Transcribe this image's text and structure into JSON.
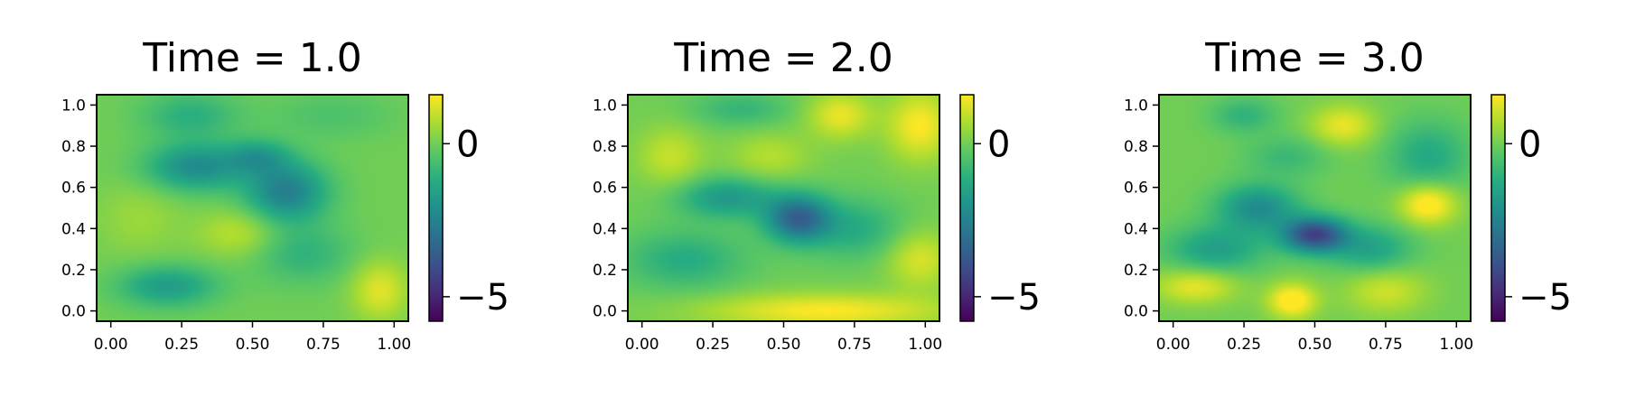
{
  "chart_data": [
    {
      "type": "heatmap",
      "title": "Time = 1.0",
      "x_ticks": [
        "0.00",
        "0.25",
        "0.50",
        "0.75",
        "1.00"
      ],
      "y_ticks": [
        "0.0",
        "0.2",
        "0.4",
        "0.6",
        "0.8",
        "1.0"
      ],
      "xlim": [
        -0.05,
        1.05
      ],
      "ylim": [
        -0.05,
        1.05
      ],
      "colorbar": {
        "ticks": [
          "0",
          "−5"
        ],
        "values": [
          0,
          -5
        ],
        "range": [
          -5.8,
          1.6
        ],
        "colormap": "viridis"
      },
      "features": [
        {
          "x": 0.3,
          "y": 0.7,
          "sx": 0.12,
          "sy": 0.08,
          "amp": -2.2
        },
        {
          "x": 0.62,
          "y": 0.58,
          "sx": 0.1,
          "sy": 0.1,
          "amp": -2.6
        },
        {
          "x": 0.52,
          "y": 0.75,
          "sx": 0.08,
          "sy": 0.06,
          "amp": -1.5
        },
        {
          "x": 0.2,
          "y": 0.12,
          "sx": 0.12,
          "sy": 0.07,
          "amp": -1.7
        },
        {
          "x": 0.28,
          "y": 0.95,
          "sx": 0.12,
          "sy": 0.08,
          "amp": -1.1
        },
        {
          "x": 0.68,
          "y": 0.28,
          "sx": 0.12,
          "sy": 0.1,
          "amp": -1.0
        },
        {
          "x": 0.95,
          "y": 0.1,
          "sx": 0.07,
          "sy": 0.1,
          "amp": 1.3
        },
        {
          "x": 0.45,
          "y": 0.38,
          "sx": 0.1,
          "sy": 0.08,
          "amp": 0.9
        },
        {
          "x": 0.1,
          "y": 0.45,
          "sx": 0.1,
          "sy": 0.12,
          "amp": 0.5
        },
        {
          "x": 0.78,
          "y": 0.95,
          "sx": 0.15,
          "sy": 0.08,
          "amp": -0.5
        }
      ]
    },
    {
      "type": "heatmap",
      "title": "Time = 2.0",
      "x_ticks": [
        "0.00",
        "0.25",
        "0.50",
        "0.75",
        "1.00"
      ],
      "y_ticks": [
        "0.0",
        "0.2",
        "0.4",
        "0.6",
        "0.8",
        "1.0"
      ],
      "xlim": [
        -0.05,
        1.05
      ],
      "ylim": [
        -0.05,
        1.05
      ],
      "colorbar": {
        "ticks": [
          "0",
          "−5"
        ],
        "values": [
          0,
          -5
        ],
        "range": [
          -5.8,
          1.6
        ],
        "colormap": "viridis"
      },
      "features": [
        {
          "x": 0.55,
          "y": 0.45,
          "sx": 0.08,
          "sy": 0.08,
          "amp": -3.3
        },
        {
          "x": 0.3,
          "y": 0.55,
          "sx": 0.12,
          "sy": 0.07,
          "amp": -1.8
        },
        {
          "x": 0.75,
          "y": 0.4,
          "sx": 0.12,
          "sy": 0.1,
          "amp": -1.2
        },
        {
          "x": 0.15,
          "y": 0.25,
          "sx": 0.15,
          "sy": 0.1,
          "amp": -1.2
        },
        {
          "x": 0.65,
          "y": 0.0,
          "sx": 0.3,
          "sy": 0.06,
          "amp": 1.6
        },
        {
          "x": 0.7,
          "y": 0.95,
          "sx": 0.08,
          "sy": 0.08,
          "amp": 1.4
        },
        {
          "x": 0.98,
          "y": 0.9,
          "sx": 0.08,
          "sy": 0.12,
          "amp": 1.6
        },
        {
          "x": 0.98,
          "y": 0.25,
          "sx": 0.08,
          "sy": 0.1,
          "amp": 1.2
        },
        {
          "x": 0.1,
          "y": 0.75,
          "sx": 0.08,
          "sy": 0.1,
          "amp": 1.0
        },
        {
          "x": 0.45,
          "y": 0.75,
          "sx": 0.1,
          "sy": 0.08,
          "amp": 0.8
        },
        {
          "x": 0.35,
          "y": 0.98,
          "sx": 0.12,
          "sy": 0.06,
          "amp": -0.9
        }
      ]
    },
    {
      "type": "heatmap",
      "title": "Time = 3.0",
      "x_ticks": [
        "0.00",
        "0.25",
        "0.50",
        "0.75",
        "1.00"
      ],
      "y_ticks": [
        "0.0",
        "0.2",
        "0.4",
        "0.6",
        "0.8",
        "1.0"
      ],
      "xlim": [
        -0.05,
        1.05
      ],
      "ylim": [
        -0.05,
        1.05
      ],
      "colorbar": {
        "ticks": [
          "0",
          "−5"
        ],
        "values": [
          0,
          -5
        ],
        "range": [
          -5.8,
          1.6
        ],
        "colormap": "viridis"
      },
      "features": [
        {
          "x": 0.5,
          "y": 0.37,
          "sx": 0.08,
          "sy": 0.06,
          "amp": -4.2
        },
        {
          "x": 0.3,
          "y": 0.5,
          "sx": 0.1,
          "sy": 0.08,
          "amp": -2.2
        },
        {
          "x": 0.15,
          "y": 0.3,
          "sx": 0.12,
          "sy": 0.08,
          "amp": -1.6
        },
        {
          "x": 0.7,
          "y": 0.3,
          "sx": 0.1,
          "sy": 0.08,
          "amp": -1.5
        },
        {
          "x": 0.9,
          "y": 0.75,
          "sx": 0.1,
          "sy": 0.12,
          "amp": -1.3
        },
        {
          "x": 0.4,
          "y": 0.75,
          "sx": 0.1,
          "sy": 0.07,
          "amp": -0.8
        },
        {
          "x": 0.9,
          "y": 0.52,
          "sx": 0.07,
          "sy": 0.07,
          "amp": 2.0
        },
        {
          "x": 0.42,
          "y": 0.05,
          "sx": 0.06,
          "sy": 0.06,
          "amp": 2.0
        },
        {
          "x": 0.08,
          "y": 0.12,
          "sx": 0.1,
          "sy": 0.06,
          "amp": 1.4
        },
        {
          "x": 0.6,
          "y": 0.9,
          "sx": 0.08,
          "sy": 0.07,
          "amp": 1.4
        },
        {
          "x": 0.75,
          "y": 0.1,
          "sx": 0.1,
          "sy": 0.08,
          "amp": 1.1
        },
        {
          "x": 0.25,
          "y": 0.95,
          "sx": 0.08,
          "sy": 0.06,
          "amp": -1.0
        }
      ]
    }
  ]
}
